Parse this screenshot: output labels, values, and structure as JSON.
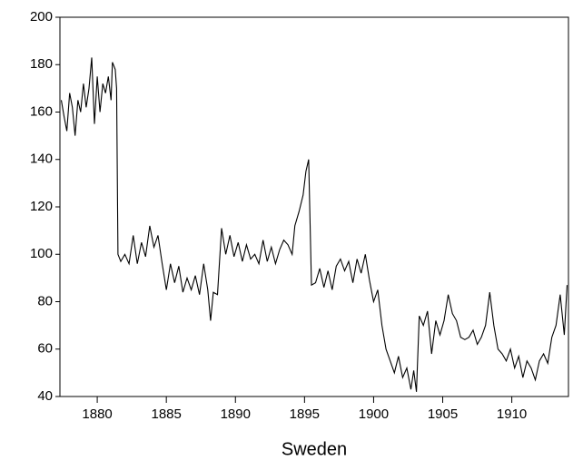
{
  "chart_data": {
    "type": "line",
    "title": "Sweden",
    "x": [
      1877.4,
      1877.6,
      1877.8,
      1878.0,
      1878.2,
      1878.4,
      1878.6,
      1878.8,
      1879.0,
      1879.2,
      1879.4,
      1879.6,
      1879.8,
      1880.0,
      1880.2,
      1880.4,
      1880.6,
      1880.8,
      1881.0,
      1881.1,
      1881.3,
      1881.4,
      1881.5,
      1881.7,
      1882.0,
      1882.3,
      1882.6,
      1882.9,
      1883.2,
      1883.5,
      1883.8,
      1884.1,
      1884.4,
      1884.7,
      1885.0,
      1885.3,
      1885.6,
      1885.9,
      1886.2,
      1886.5,
      1886.8,
      1887.1,
      1887.4,
      1887.7,
      1888.0,
      1888.2,
      1888.4,
      1888.7,
      1889.0,
      1889.3,
      1889.6,
      1889.9,
      1890.2,
      1890.5,
      1890.8,
      1891.1,
      1891.4,
      1891.7,
      1892.0,
      1892.3,
      1892.6,
      1892.9,
      1893.2,
      1893.5,
      1893.8,
      1894.1,
      1894.3,
      1894.6,
      1894.9,
      1895.1,
      1895.3,
      1895.5,
      1895.8,
      1896.1,
      1896.4,
      1896.7,
      1897.0,
      1897.3,
      1897.6,
      1897.9,
      1898.2,
      1898.5,
      1898.8,
      1899.1,
      1899.4,
      1899.7,
      1900.0,
      1900.3,
      1900.6,
      1900.9,
      1901.2,
      1901.5,
      1901.8,
      1902.1,
      1902.4,
      1902.7,
      1902.9,
      1903.1,
      1903.3,
      1903.6,
      1903.9,
      1904.2,
      1904.5,
      1904.8,
      1905.1,
      1905.4,
      1905.7,
      1906.0,
      1906.3,
      1906.6,
      1906.9,
      1907.2,
      1907.5,
      1907.8,
      1908.1,
      1908.4,
      1908.7,
      1909.0,
      1909.3,
      1909.6,
      1909.9,
      1910.2,
      1910.5,
      1910.8,
      1911.1,
      1911.4,
      1911.7,
      1912.0,
      1912.3,
      1912.6,
      1912.9,
      1913.2,
      1913.5,
      1913.8,
      1914.0
    ],
    "series": [
      {
        "color": "#000000",
        "values": [
          165,
          158,
          152,
          168,
          162,
          150,
          165,
          160,
          172,
          162,
          170,
          183,
          155,
          175,
          160,
          172,
          168,
          175,
          165,
          181,
          178,
          170,
          100,
          97,
          100,
          96,
          108,
          96,
          105,
          99,
          112,
          103,
          108,
          96,
          85,
          96,
          88,
          95,
          84,
          90,
          85,
          91,
          83,
          96,
          85,
          72,
          84,
          83,
          111,
          100,
          108,
          99,
          105,
          97,
          104,
          98,
          100,
          96,
          106,
          97,
          103,
          96,
          102,
          106,
          104,
          100,
          112,
          118,
          125,
          135,
          140,
          87,
          88,
          94,
          86,
          93,
          85,
          95,
          98,
          93,
          97,
          88,
          98,
          92,
          100,
          89,
          80,
          85,
          70,
          60,
          55,
          50,
          57,
          48,
          52,
          43,
          51,
          42,
          74,
          70,
          76,
          58,
          72,
          66,
          72,
          83,
          75,
          72,
          65,
          64,
          65,
          68,
          62,
          65,
          70,
          84,
          70,
          60,
          58,
          55,
          60,
          52,
          57,
          48,
          55,
          52,
          47,
          55,
          58,
          54,
          65,
          70,
          83,
          66,
          87
        ]
      }
    ],
    "xlim": [
      1877.3,
      1914.1
    ],
    "xticks": [
      1880,
      1885,
      1890,
      1895,
      1900,
      1905,
      1910
    ],
    "ylim": [
      40,
      200
    ],
    "yticks": [
      40,
      60,
      80,
      100,
      120,
      140,
      160,
      180,
      200
    ]
  }
}
